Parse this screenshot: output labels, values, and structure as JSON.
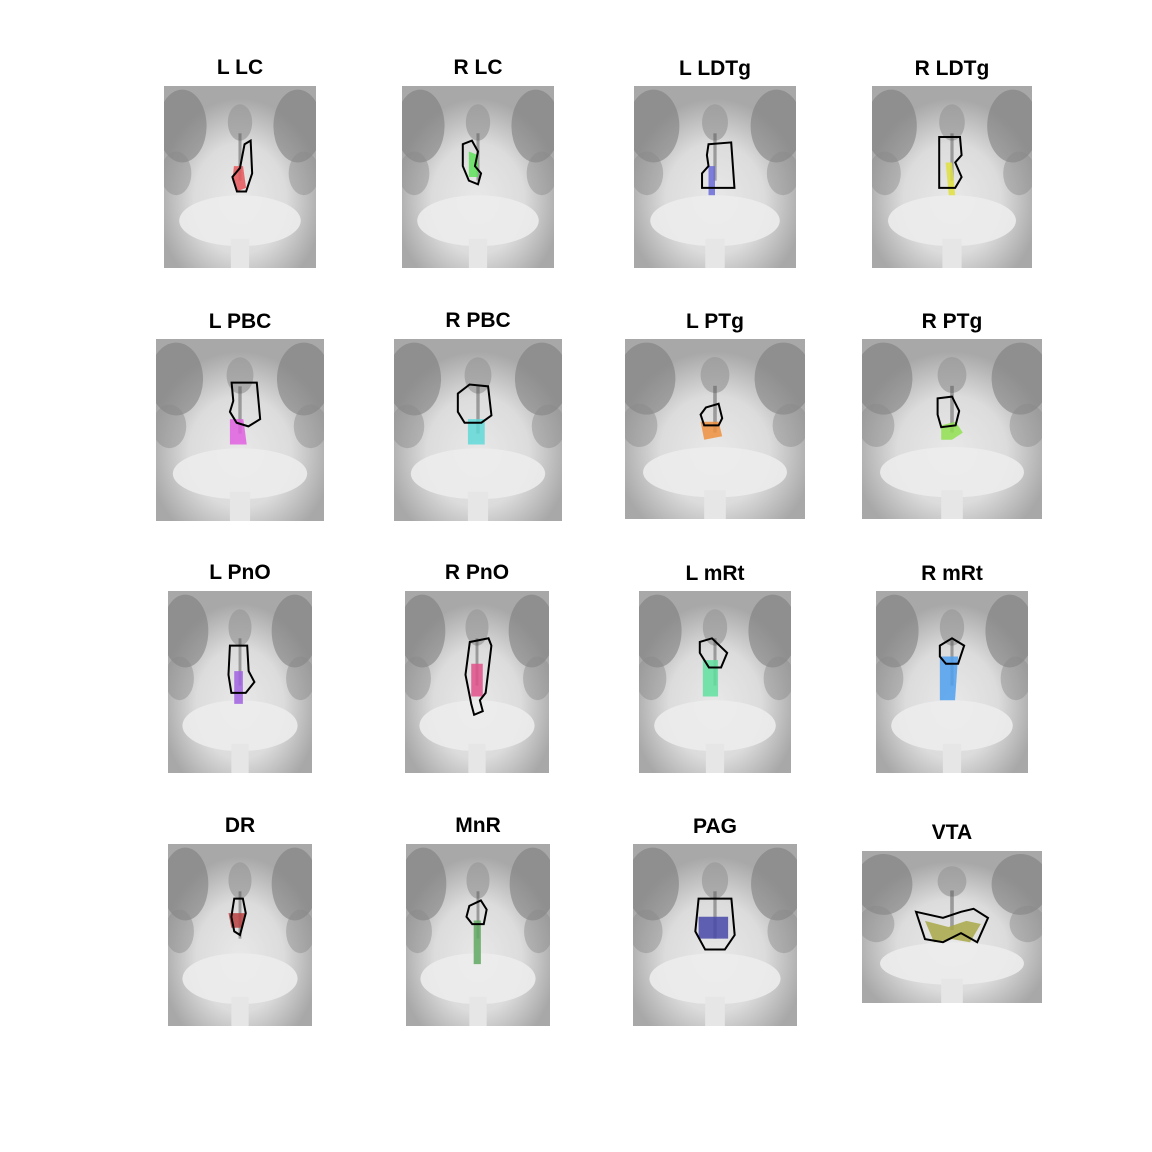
{
  "figure": {
    "panels": [
      {
        "title": "L LC",
        "fill_color": "#e8575a"
      },
      {
        "title": "R LC",
        "fill_color": "#5ee05a"
      },
      {
        "title": "L LDTg",
        "fill_color": "#6a6ad8"
      },
      {
        "title": "R LDTg",
        "fill_color": "#e0e040"
      },
      {
        "title": "L PBC",
        "fill_color": "#e060e0"
      },
      {
        "title": "R PBC",
        "fill_color": "#60d8d8"
      },
      {
        "title": "L PTg",
        "fill_color": "#f09040"
      },
      {
        "title": "R PTg",
        "fill_color": "#90e050"
      },
      {
        "title": "L PnO",
        "fill_color": "#a060e0"
      },
      {
        "title": "R PnO",
        "fill_color": "#e0508a"
      },
      {
        "title": "L mRt",
        "fill_color": "#60e0a0"
      },
      {
        "title": "R mRt",
        "fill_color": "#50a0f0"
      },
      {
        "title": "DR",
        "fill_color": "#b84040"
      },
      {
        "title": "MnR",
        "fill_color": "#60a860"
      },
      {
        "title": "PAG",
        "fill_color": "#4848a8"
      },
      {
        "title": "VTA",
        "fill_color": "#a8a848"
      }
    ],
    "outline_color": "#000000",
    "background_color": "#ffffff"
  }
}
